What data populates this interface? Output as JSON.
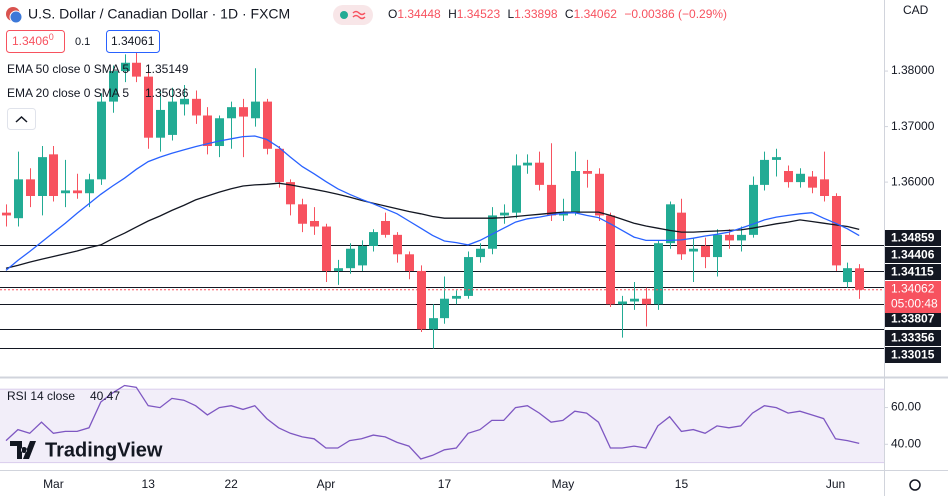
{
  "chart_data": [
    {
      "type": "candlestick",
      "title": "U.S. Dollar / Canadian Dollar · 1D · FXCM",
      "currency": "CAD",
      "categories": [
        null,
        null,
        null,
        null,
        "Mar",
        null,
        null,
        null,
        null,
        null,
        null,
        null,
        "13",
        null,
        null,
        null,
        null,
        null,
        null,
        "22",
        null,
        null,
        null,
        null,
        null,
        null,
        null,
        "Apr",
        null,
        null,
        null,
        null,
        null,
        null,
        null,
        null,
        null,
        "17",
        null,
        null,
        null,
        null,
        null,
        null,
        null,
        null,
        null,
        "May",
        null,
        null,
        null,
        null,
        null,
        null,
        null,
        null,
        null,
        "15",
        null,
        null,
        null,
        null,
        null,
        null,
        null,
        null,
        null,
        null,
        null,
        null,
        "Jun",
        null,
        null
      ],
      "open": [
        1.3545,
        1.3535,
        1.3605,
        1.3575,
        1.365,
        1.358,
        1.3585,
        1.358,
        1.3605,
        1.3745,
        1.38,
        1.3815,
        1.379,
        1.368,
        1.3685,
        1.374,
        1.375,
        1.372,
        1.3665,
        1.3715,
        1.3735,
        1.3715,
        1.3745,
        1.366,
        1.36,
        1.356,
        1.353,
        1.352,
        1.344,
        1.3445,
        1.345,
        1.3485,
        1.353,
        1.3505,
        1.347,
        1.344,
        1.3335,
        1.3355,
        1.339,
        1.3395,
        1.3465,
        1.348,
        1.354,
        1.3545,
        1.363,
        1.3635,
        1.3595,
        1.354,
        1.3545,
        1.362,
        1.3615,
        1.354,
        1.338,
        1.3385,
        1.339,
        1.338,
        1.349,
        1.3545,
        1.3475,
        1.3485,
        1.3465,
        1.3505,
        1.3495,
        1.3505,
        1.3595,
        1.364,
        1.362,
        1.36,
        1.361,
        1.3605,
        1.3575,
        1.342,
        1.34448
      ],
      "high": [
        1.356,
        1.3655,
        1.3625,
        1.3665,
        1.3665,
        1.364,
        1.3615,
        1.3615,
        1.376,
        1.381,
        1.383,
        1.386,
        1.38,
        1.3765,
        1.377,
        1.3775,
        1.3765,
        1.3735,
        1.372,
        1.3745,
        1.375,
        1.3805,
        1.375,
        1.3665,
        1.3605,
        1.357,
        1.3555,
        1.3525,
        1.346,
        1.349,
        1.3495,
        1.3515,
        1.3545,
        1.351,
        1.3475,
        1.345,
        1.338,
        1.343,
        1.3405,
        1.3475,
        1.349,
        1.3555,
        1.356,
        1.365,
        1.365,
        1.3655,
        1.367,
        1.357,
        1.3655,
        1.364,
        1.3625,
        1.3545,
        1.3395,
        1.342,
        1.341,
        1.3495,
        1.3565,
        1.357,
        1.35,
        1.35,
        1.3515,
        1.3515,
        1.352,
        1.361,
        1.3655,
        1.366,
        1.363,
        1.3625,
        1.362,
        1.3655,
        1.358,
        1.3455,
        1.34523
      ],
      "low": [
        1.352,
        1.352,
        1.3555,
        1.354,
        1.3565,
        1.3555,
        1.357,
        1.3555,
        1.3595,
        1.3725,
        1.378,
        1.378,
        1.366,
        1.3655,
        1.3675,
        1.372,
        1.3705,
        1.365,
        1.3645,
        1.366,
        1.3645,
        1.37,
        1.365,
        1.359,
        1.354,
        1.351,
        1.3505,
        1.342,
        1.3415,
        1.3435,
        1.344,
        1.3475,
        1.35,
        1.3455,
        1.3425,
        1.333,
        1.33,
        1.3345,
        1.338,
        1.339,
        1.3455,
        1.347,
        1.3525,
        1.3535,
        1.3615,
        1.3585,
        1.353,
        1.353,
        1.354,
        1.359,
        1.353,
        1.3375,
        1.332,
        1.337,
        1.334,
        1.337,
        1.348,
        1.346,
        1.342,
        1.3445,
        1.343,
        1.348,
        1.3475,
        1.35,
        1.3585,
        1.361,
        1.359,
        1.359,
        1.358,
        1.3565,
        1.344,
        1.341,
        1.33898
      ],
      "close": [
        1.354,
        1.3605,
        1.3575,
        1.3645,
        1.3575,
        1.3585,
        1.358,
        1.3605,
        1.3745,
        1.38,
        1.3815,
        1.379,
        1.368,
        1.373,
        1.3745,
        1.375,
        1.372,
        1.3665,
        1.3715,
        1.3735,
        1.3718,
        1.3745,
        1.366,
        1.36,
        1.356,
        1.3525,
        1.352,
        1.344,
        1.3445,
        1.348,
        1.3485,
        1.351,
        1.3505,
        1.347,
        1.344,
        1.3335,
        1.3355,
        1.339,
        1.3395,
        1.3465,
        1.348,
        1.354,
        1.3545,
        1.363,
        1.3635,
        1.3595,
        1.354,
        1.3545,
        1.362,
        1.3615,
        1.354,
        1.338,
        1.3385,
        1.339,
        1.338,
        1.349,
        1.356,
        1.347,
        1.348,
        1.3465,
        1.3505,
        1.3495,
        1.3505,
        1.3595,
        1.364,
        1.3645,
        1.36,
        1.3615,
        1.359,
        1.3575,
        1.345,
        1.3445,
        1.34062
      ],
      "up_color": "#22ab94",
      "down_color": "#f7525f",
      "series": [
        {
          "name": "EMA 50 close 0 SMA 5",
          "color": "#131722",
          "values": [
            1.3445,
            1.345,
            1.3456,
            1.3461,
            1.3466,
            1.3471,
            1.3476,
            1.3482,
            1.3487,
            1.3498,
            1.3508,
            1.3519,
            1.353,
            1.3539,
            1.3549,
            1.3558,
            1.3568,
            1.3575,
            1.3582,
            1.3588,
            1.3593,
            1.3595,
            1.3596,
            1.3598,
            1.3595,
            1.3591,
            1.3587,
            1.3583,
            1.3578,
            1.3573,
            1.3567,
            1.3562,
            1.3557,
            1.3552,
            1.3547,
            1.3543,
            1.3538,
            1.3535,
            1.3535,
            1.3535,
            1.3535,
            1.3535,
            1.3536,
            1.3538,
            1.354,
            1.3542,
            1.3544,
            1.3546,
            1.3546,
            1.3546,
            1.3546,
            1.354,
            1.3533,
            1.3526,
            1.3521,
            1.3517,
            1.3513,
            1.351,
            1.351,
            1.3511,
            1.3512,
            1.3513,
            1.3514,
            1.3517,
            1.3521,
            1.3525,
            1.3528,
            1.3532,
            1.3529,
            1.3526,
            1.3523,
            1.352,
            1.35149
          ]
        },
        {
          "name": "EMA 20 close 0 SMA 5",
          "color": "#2962ff",
          "values": [
            1.3441,
            1.3459,
            1.3475,
            1.3492,
            1.3509,
            1.3526,
            1.3544,
            1.3561,
            1.3578,
            1.3593,
            1.3607,
            1.3623,
            1.3637,
            1.3645,
            1.3652,
            1.3658,
            1.3664,
            1.3669,
            1.3674,
            1.3678,
            1.3682,
            1.3683,
            1.3677,
            1.3663,
            1.3645,
            1.3628,
            1.3615,
            1.3601,
            1.3588,
            1.3578,
            1.3569,
            1.3561,
            1.3552,
            1.3543,
            1.353,
            1.3517,
            1.3504,
            1.3494,
            1.3491,
            1.3487,
            1.3495,
            1.3506,
            1.3517,
            1.3528,
            1.3534,
            1.3537,
            1.3541,
            1.3544,
            1.3545,
            1.354,
            1.3536,
            1.3525,
            1.3513,
            1.3501,
            1.3495,
            1.3495,
            1.3495,
            1.3496,
            1.3499,
            1.3503,
            1.3506,
            1.351,
            1.3517,
            1.3524,
            1.3532,
            1.3537,
            1.354,
            1.3543,
            1.3545,
            1.3535,
            1.3526,
            1.3516,
            1.35036
          ]
        }
      ],
      "ylim": [
        1.3258,
        1.3928
      ],
      "yticks": [
        {
          "value": 1.36,
          "label": "1.36000"
        },
        {
          "value": 1.37,
          "label": "1.37000"
        },
        {
          "value": 1.38,
          "label": "1.38000"
        }
      ],
      "grid": false,
      "price_levels": [
        1.34859,
        1.34406,
        1.34115,
        1.33807,
        1.33356,
        1.33015
      ],
      "countdown": "05:00:48",
      "ohlc_labels": [
        "O",
        "H",
        "L",
        "C"
      ],
      "change": "−0.00386 (−0.29%)"
    },
    {
      "type": "line",
      "name": "RSI 14 close",
      "color": "#7e57c2",
      "values": [
        42,
        48,
        46,
        52,
        46,
        47,
        47,
        49,
        63,
        68,
        72,
        71,
        61,
        60,
        65,
        64,
        61,
        56,
        60,
        61,
        59,
        61,
        54,
        49,
        46,
        44,
        43,
        38,
        38,
        42,
        43,
        45,
        44,
        41,
        39,
        32,
        34,
        37,
        38,
        46,
        48,
        53,
        53,
        60,
        61,
        57,
        52,
        53,
        58,
        57,
        52,
        38,
        38,
        39,
        38,
        50,
        55,
        47,
        48,
        46,
        50,
        49,
        50,
        57,
        61,
        60,
        57,
        58,
        56,
        54,
        43,
        42,
        40.47
      ],
      "band": [
        30,
        70
      ],
      "ylim": [
        26,
        75
      ],
      "yticks": [
        {
          "value": 40,
          "label": "40.00"
        },
        {
          "value": 60,
          "label": "60.00"
        }
      ]
    }
  ],
  "trade_panel": {
    "sell_price": "1.3406",
    "sell_price_small": "0",
    "spread": "0.1",
    "buy_price": "1.34061"
  },
  "brand": "TradingView"
}
